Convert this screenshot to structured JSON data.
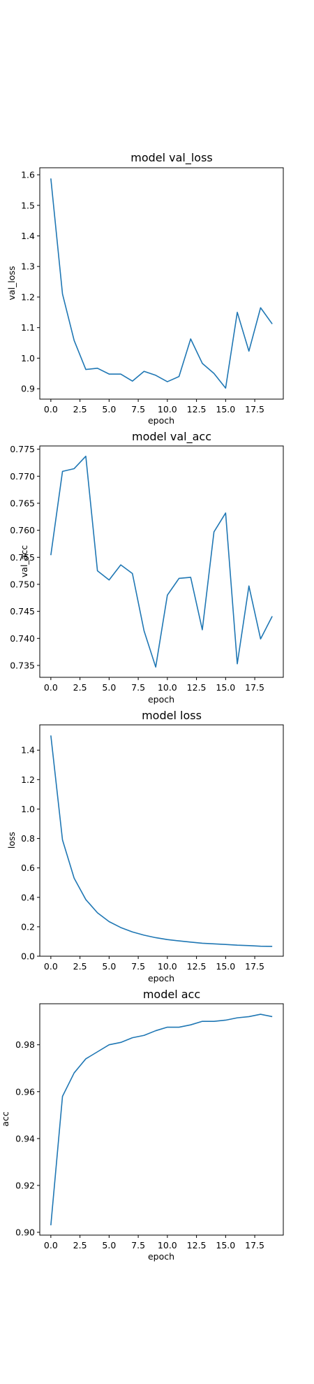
{
  "chart_data": [
    {
      "type": "line",
      "title": "model val_loss",
      "xlabel": "epoch",
      "ylabel": "val_loss",
      "xlim": [
        -0.95,
        19.95
      ],
      "ylim": [
        0.866,
        1.623
      ],
      "xticks": [
        0.0,
        2.5,
        5.0,
        7.5,
        10.0,
        12.5,
        15.0,
        17.5
      ],
      "yticks": [
        0.9,
        1.0,
        1.1,
        1.2,
        1.3,
        1.4,
        1.5,
        1.6
      ],
      "xtick_decimals": 1,
      "ytick_decimals": 1,
      "grid": false,
      "x": [
        0,
        1,
        2,
        3,
        4,
        5,
        6,
        7,
        8,
        9,
        10,
        11,
        12,
        13,
        14,
        15,
        16,
        17,
        18,
        19
      ],
      "series": [
        {
          "values": [
            1.588,
            1.21,
            1.058,
            0.963,
            0.967,
            0.948,
            0.948,
            0.925,
            0.957,
            0.944,
            0.923,
            0.94,
            1.063,
            0.983,
            0.95,
            0.902,
            1.15,
            1.023,
            1.165,
            1.112
          ]
        }
      ]
    },
    {
      "type": "line",
      "title": "model val_acc",
      "xlabel": "epoch",
      "ylabel": "val_acc",
      "xlim": [
        -0.95,
        19.95
      ],
      "ylim": [
        0.7328,
        0.7756
      ],
      "xticks": [
        0.0,
        2.5,
        5.0,
        7.5,
        10.0,
        12.5,
        15.0,
        17.5
      ],
      "yticks": [
        0.735,
        0.74,
        0.745,
        0.75,
        0.755,
        0.76,
        0.765,
        0.77,
        0.775
      ],
      "xtick_decimals": 1,
      "ytick_decimals": 3,
      "grid": false,
      "x": [
        0,
        1,
        2,
        3,
        4,
        5,
        6,
        7,
        8,
        9,
        10,
        11,
        12,
        13,
        14,
        15,
        16,
        17,
        18,
        19
      ],
      "series": [
        {
          "values": [
            0.7554,
            0.7709,
            0.7714,
            0.7737,
            0.7525,
            0.7508,
            0.7536,
            0.752,
            0.7414,
            0.7347,
            0.748,
            0.7511,
            0.7513,
            0.7416,
            0.7597,
            0.7632,
            0.7353,
            0.7497,
            0.7399,
            0.7441
          ]
        }
      ]
    },
    {
      "type": "line",
      "title": "model loss",
      "xlabel": "epoch",
      "ylabel": "loss",
      "xlim": [
        -0.95,
        19.95
      ],
      "ylim": [
        0.0,
        1.572
      ],
      "xticks": [
        0.0,
        2.5,
        5.0,
        7.5,
        10.0,
        12.5,
        15.0,
        17.5
      ],
      "yticks": [
        0.0,
        0.2,
        0.4,
        0.6,
        0.8,
        1.0,
        1.2,
        1.4
      ],
      "xtick_decimals": 1,
      "ytick_decimals": 1,
      "grid": false,
      "x": [
        0,
        1,
        2,
        3,
        4,
        5,
        6,
        7,
        8,
        9,
        10,
        11,
        12,
        13,
        14,
        15,
        16,
        17,
        18,
        19
      ],
      "series": [
        {
          "values": [
            1.5,
            0.79,
            0.53,
            0.385,
            0.295,
            0.235,
            0.195,
            0.165,
            0.143,
            0.126,
            0.113,
            0.104,
            0.096,
            0.088,
            0.084,
            0.08,
            0.075,
            0.072,
            0.068,
            0.067
          ]
        }
      ]
    },
    {
      "type": "line",
      "title": "model acc",
      "xlabel": "epoch",
      "ylabel": "acc",
      "xlim": [
        -0.95,
        19.95
      ],
      "ylim": [
        0.8988,
        0.9975
      ],
      "xticks": [
        0.0,
        2.5,
        5.0,
        7.5,
        10.0,
        12.5,
        15.0,
        17.5
      ],
      "yticks": [
        0.9,
        0.92,
        0.94,
        0.96,
        0.98
      ],
      "xtick_decimals": 1,
      "ytick_decimals": 2,
      "grid": false,
      "x": [
        0,
        1,
        2,
        3,
        4,
        5,
        6,
        7,
        8,
        9,
        10,
        11,
        12,
        13,
        14,
        15,
        16,
        17,
        18,
        19
      ],
      "series": [
        {
          "values": [
            0.903,
            0.958,
            0.968,
            0.974,
            0.977,
            0.98,
            0.981,
            0.983,
            0.984,
            0.986,
            0.9875,
            0.9875,
            0.9885,
            0.99,
            0.99,
            0.9905,
            0.9915,
            0.992,
            0.993,
            0.992
          ]
        }
      ]
    }
  ],
  "colors": {
    "series": "#1f77b4",
    "axes": "#000000",
    "background": "#ffffff"
  }
}
